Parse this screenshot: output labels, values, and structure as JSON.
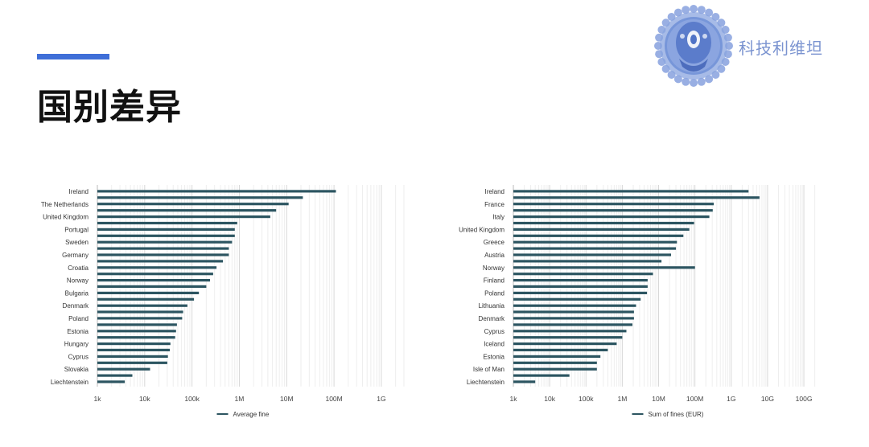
{
  "page": {
    "title": "国别差异",
    "brand_text": "科技利维坦",
    "accent_color": "#3f6fd8",
    "bar_color": "#2c5561"
  },
  "chart_data": [
    {
      "type": "bar",
      "orientation": "horizontal",
      "x_scale": "log",
      "xlim": [
        1000,
        3000000000
      ],
      "x_ticks": [
        1000,
        10000,
        100000,
        1000000,
        10000000,
        100000000,
        1000000000
      ],
      "x_tick_labels": [
        "1k",
        "10k",
        "100k",
        "1M",
        "10M",
        "100M",
        "1G"
      ],
      "grid": true,
      "legend": "bottom",
      "categories": [
        "Ireland",
        "",
        "The Netherlands",
        "",
        "United Kingdom",
        "",
        "Portugal",
        "",
        "Sweden",
        "",
        "Germany",
        "",
        "Croatia",
        "",
        "Norway",
        "",
        "Bulgaria",
        "",
        "Denmark",
        "",
        "Poland",
        "",
        "Estonia",
        "",
        "Hungary",
        "",
        "Cyprus",
        "",
        "Slovakia",
        "",
        "Liechtenstein"
      ],
      "series": [
        {
          "name": "Average fine",
          "values": [
            110000000,
            22000000,
            11000000,
            6000000,
            4500000,
            900000,
            800000,
            800000,
            700000,
            600000,
            600000,
            450000,
            330000,
            280000,
            240000,
            200000,
            140000,
            110000,
            80000,
            65000,
            62000,
            48000,
            46000,
            44000,
            35000,
            34000,
            31000,
            30000,
            13000,
            5500,
            3800
          ]
        }
      ]
    },
    {
      "type": "bar",
      "orientation": "horizontal",
      "x_scale": "log",
      "xlim": [
        1000,
        250000000000
      ],
      "x_ticks": [
        1000,
        10000,
        100000,
        1000000,
        10000000,
        100000000,
        1000000000,
        10000000000,
        100000000000
      ],
      "x_tick_labels": [
        "1k",
        "10k",
        "100k",
        "1M",
        "10M",
        "100M",
        "1G",
        "10G",
        "100G"
      ],
      "grid": true,
      "legend": "bottom",
      "categories": [
        "Ireland",
        "",
        "France",
        "",
        "Italy",
        "",
        "United Kingdom",
        "",
        "Greece",
        "",
        "Austria",
        "",
        "Norway",
        "",
        "Finland",
        "",
        "Poland",
        "",
        "Lithuania",
        "",
        "Denmark",
        "",
        "Cyprus",
        "",
        "Iceland",
        "",
        "Estonia",
        "",
        "Isle of Man",
        "",
        "Liechtenstein"
      ],
      "series": [
        {
          "name": "Sum of fines (EUR)",
          "values": [
            3000000000,
            6000000000,
            330000000,
            310000000,
            250000000,
            95000000,
            70000000,
            48000000,
            32000000,
            30000000,
            22000000,
            12000000,
            100000000,
            7000000,
            5000000,
            5000000,
            4800000,
            3200000,
            2400000,
            2100000,
            2100000,
            1900000,
            1300000,
            1000000,
            700000,
            400000,
            250000,
            200000,
            200000,
            35000,
            4000
          ]
        }
      ]
    }
  ]
}
